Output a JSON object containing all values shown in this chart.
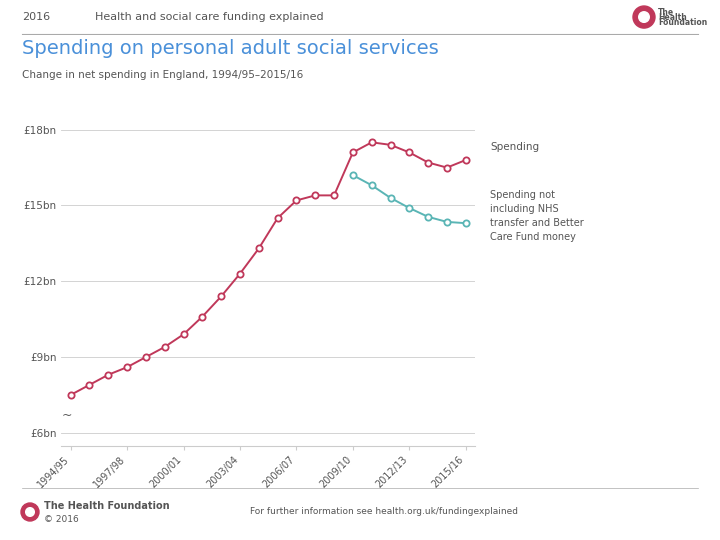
{
  "title": "Spending on personal adult social services",
  "subtitle": "Change in net spending in England, 1994/95–2015/16",
  "header_year": "2016",
  "header_title": "Health and social care funding explained",
  "x_labels": [
    "1994/95",
    "1997/98",
    "2000/01",
    "2003/04",
    "2006/07",
    "2009/10",
    "2012/13",
    "2015/16"
  ],
  "x_positions": [
    0,
    3,
    6,
    9,
    12,
    15,
    18,
    21
  ],
  "spending_x": [
    0,
    1,
    2,
    3,
    4,
    5,
    6,
    7,
    8,
    9,
    10,
    11,
    12,
    13,
    14,
    15,
    16,
    17,
    18,
    19,
    20,
    21
  ],
  "spending_y": [
    7.5,
    7.9,
    8.3,
    8.6,
    9.0,
    9.4,
    9.9,
    10.6,
    11.4,
    12.3,
    13.3,
    14.5,
    15.2,
    15.4,
    15.4,
    17.1,
    17.5,
    17.4,
    17.1,
    16.7,
    16.5,
    16.8
  ],
  "spending_excl_x": [
    15,
    16,
    17,
    18,
    19,
    20,
    21
  ],
  "spending_excl_y": [
    16.2,
    15.8,
    15.3,
    14.9,
    14.55,
    14.35,
    14.3
  ],
  "y_ticks": [
    6,
    9,
    12,
    15,
    18
  ],
  "y_tick_labels": [
    "£6bn",
    "£9bn",
    "£12bn",
    "£15bn",
    "£18bn"
  ],
  "spending_color": "#c0385a",
  "spending_excl_color": "#5ab5b5",
  "bg_color": "#ffffff",
  "grid_color": "#cccccc",
  "title_color": "#4a90d9",
  "text_color": "#555555",
  "label_spending": "Spending",
  "label_excl": "Spending not\nincluding NHS\ntransfer and Better\nCare Fund money",
  "footer_org": "The Health Foundation",
  "footer_url": "For further information see health.org.uk/fundingexplained",
  "footer_copy": "© 2016",
  "logo_color": "#c0385a",
  "header_line_color": "#aaaaaa"
}
